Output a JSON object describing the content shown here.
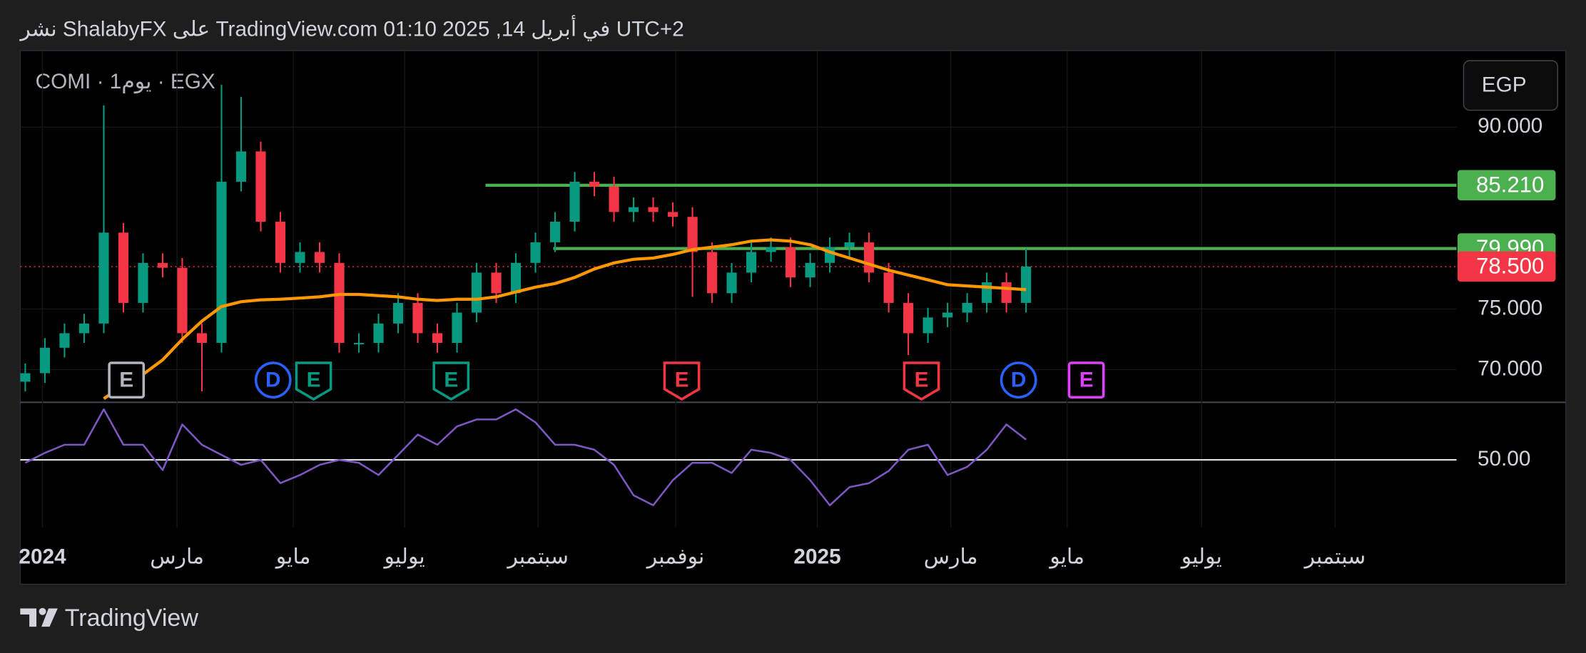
{
  "chart_data": {
    "type": "candlestick",
    "title": "نشر ShalabyFX على TradingView.com 01:10 2025 ,14 في أبريل UTC+2",
    "symbol": "COMI · 1يوم · EGX",
    "currency": "EGP",
    "footer": "TradingView",
    "up_color": "#089981",
    "down_color": "#f23645",
    "open": [
      69.0,
      69.7,
      71.8,
      73.0,
      73.8,
      81.3,
      75.5,
      78.8,
      78.4,
      73.0,
      72.2,
      85.5,
      88.0,
      82.2,
      78.8,
      79.7,
      78.8,
      72.2,
      72.2,
      73.8,
      75.5,
      73.0,
      72.2,
      74.7,
      78.0,
      76.3,
      78.8,
      80.5,
      82.2,
      85.5,
      85.1,
      83.0,
      83.4,
      83.0,
      82.6,
      79.7,
      76.3,
      78.0,
      79.7,
      80.1,
      77.6,
      78.8,
      80.1,
      80.5,
      78.0,
      75.5,
      73.0,
      74.3,
      74.7,
      75.5,
      77.2,
      75.5
    ],
    "high": [
      70.5,
      72.6,
      73.8,
      74.6,
      91.8,
      82.1,
      79.6,
      79.6,
      79.2,
      73.8,
      93.5,
      92.5,
      88.8,
      83.0,
      80.5,
      80.5,
      79.6,
      73.0,
      74.6,
      76.3,
      76.3,
      73.8,
      75.5,
      78.8,
      78.8,
      79.6,
      81.3,
      83.0,
      86.3,
      86.3,
      85.9,
      84.2,
      84.2,
      83.8,
      83.4,
      80.5,
      78.8,
      80.5,
      80.9,
      80.9,
      79.6,
      80.9,
      81.3,
      81.3,
      78.8,
      76.3,
      75.1,
      75.5,
      76.3,
      78.0,
      78.0,
      80.0
    ],
    "low": [
      68.2,
      68.9,
      71.0,
      72.2,
      73.0,
      74.7,
      74.7,
      77.6,
      72.2,
      68.2,
      71.4,
      84.7,
      81.4,
      78.0,
      78.0,
      78.0,
      71.4,
      71.4,
      71.4,
      73.0,
      72.2,
      71.4,
      71.4,
      73.9,
      75.5,
      75.5,
      78.0,
      79.7,
      81.4,
      84.3,
      82.2,
      82.2,
      82.2,
      81.8,
      76.0,
      75.5,
      75.5,
      77.2,
      78.9,
      76.8,
      76.8,
      78.0,
      79.3,
      77.2,
      74.7,
      71.2,
      72.2,
      73.5,
      73.9,
      74.7,
      74.7,
      74.7
    ],
    "close": [
      69.7,
      71.8,
      73.0,
      73.8,
      81.3,
      75.5,
      78.8,
      78.4,
      73.0,
      72.2,
      85.5,
      88.0,
      82.2,
      78.8,
      79.7,
      78.8,
      72.2,
      72.2,
      73.8,
      75.5,
      73.0,
      72.2,
      74.7,
      78.0,
      76.3,
      78.8,
      80.5,
      82.2,
      85.5,
      85.1,
      83.0,
      83.4,
      83.0,
      82.6,
      79.7,
      76.3,
      78.0,
      79.7,
      80.1,
      77.6,
      78.8,
      80.1,
      80.5,
      78.0,
      75.5,
      73.0,
      74.3,
      74.7,
      75.5,
      77.2,
      75.5,
      78.5
    ],
    "series": [
      {
        "color": "#ff9800",
        "values": [
          null,
          null,
          null,
          null,
          67.6,
          68.7,
          69.6,
          70.8,
          72.5,
          74.0,
          75.2,
          75.6,
          75.75,
          75.8,
          75.9,
          76.0,
          76.2,
          76.2,
          76.1,
          76.0,
          75.8,
          75.7,
          75.8,
          75.8,
          76.0,
          76.4,
          76.8,
          77.1,
          77.6,
          78.3,
          78.8,
          79.1,
          79.2,
          79.5,
          79.9,
          80.1,
          80.3,
          80.6,
          80.7,
          80.6,
          80.3,
          79.7,
          79.2,
          78.7,
          78.2,
          77.8,
          77.4,
          77.0,
          76.9,
          76.8,
          76.7,
          76.6
        ]
      },
      {
        "color": "#7e57c2",
        "axis": "y2",
        "values": [
          48.7,
          53.1,
          56.7,
          56.7,
          72.4,
          56.7,
          56.7,
          45.5,
          65.7,
          56.7,
          52.2,
          47.8,
          50,
          39.7,
          43.3,
          47.8,
          50,
          48.7,
          43.3,
          52.2,
          61.2,
          56.7,
          64.8,
          67.9,
          67.9,
          72.4,
          66.6,
          56.7,
          56.7,
          54.5,
          47.8,
          34.3,
          29.9,
          41.0,
          48.7,
          48.7,
          44.2,
          54.5,
          53.1,
          50,
          41.0,
          29.9,
          37.9,
          39.7,
          45.1,
          54.5,
          56.7,
          43.3,
          46.9,
          54.5,
          65.7,
          59.0
        ]
      }
    ],
    "ylim": [
      67.3,
      94.9
    ],
    "yticks": [
      {
        "value": 90,
        "label": "90.000"
      },
      {
        "value": 75,
        "label": "75.000"
      },
      {
        "value": 70,
        "label": "70.000"
      }
    ],
    "y2lim": [
      20,
      75.5
    ],
    "y2ticks": [
      {
        "value": 50,
        "label": "50.00"
      }
    ],
    "price_lines": [
      {
        "value": 85.21,
        "label": "85.210",
        "color": "#4caf50",
        "style": "solid"
      },
      {
        "value": 79.99,
        "label": "79.990",
        "color": "#4caf50",
        "style": "solid"
      },
      {
        "value": 78.5,
        "label": "78.500",
        "color": "#f23645",
        "style": "dotted"
      }
    ],
    "x_labels": [
      "2024",
      "مارس",
      "مايو",
      "يوليو",
      "سبتمبر",
      "نوفمبر",
      "2025",
      "مارس",
      "مايو",
      "يوليو",
      "سبتمبر"
    ],
    "events": [
      {
        "label": "E",
        "color": "#b2b5be"
      },
      {
        "label": "D",
        "color": "#2962ff"
      },
      {
        "label": "E",
        "color": "#089981"
      },
      {
        "label": "E",
        "color": "#089981"
      },
      {
        "label": "E",
        "color": "#f23645"
      },
      {
        "label": "E",
        "color": "#f23645"
      },
      {
        "label": "D",
        "color": "#2962ff"
      },
      {
        "label": "E",
        "color": "#e040fb"
      }
    ]
  }
}
